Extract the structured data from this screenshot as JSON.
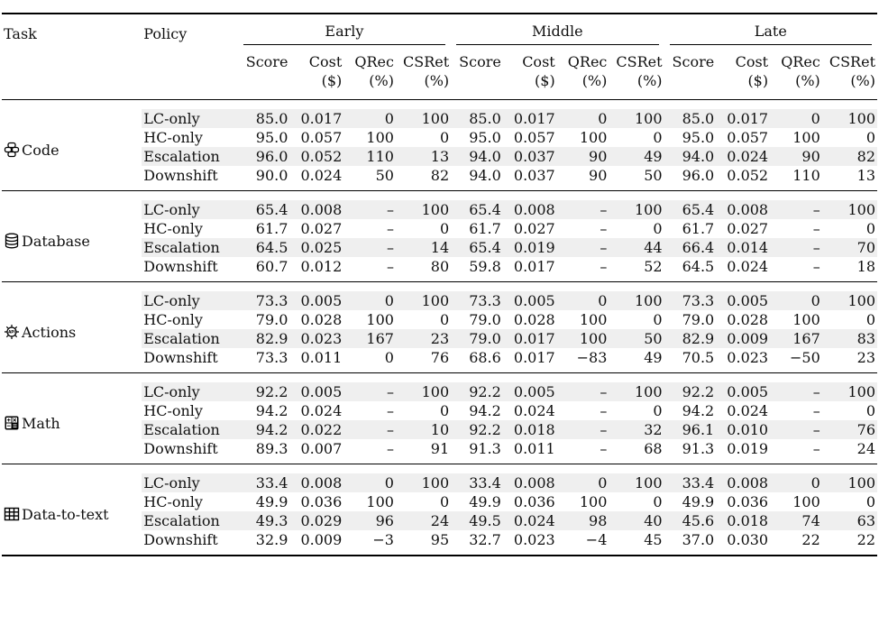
{
  "headers": {
    "task": "Task",
    "policy": "Policy",
    "groups": [
      "Early",
      "Middle",
      "Late"
    ],
    "sub": [
      {
        "l1": "Score",
        "l2": ""
      },
      {
        "l1": "Cost",
        "l2": "($)"
      },
      {
        "l1": "QRec",
        "l2": "(%)"
      },
      {
        "l1": "CSRet",
        "l2": "(%)"
      }
    ]
  },
  "tasks": [
    {
      "name": "Code",
      "icon": "code-icon",
      "rows": [
        {
          "policy": "LC-only",
          "cells": [
            "85.0",
            "0.017",
            "0",
            "100",
            "85.0",
            "0.017",
            "0",
            "100",
            "85.0",
            "0.017",
            "0",
            "100"
          ]
        },
        {
          "policy": "HC-only",
          "cells": [
            "95.0",
            "0.057",
            "100",
            "0",
            "95.0",
            "0.057",
            "100",
            "0",
            "95.0",
            "0.057",
            "100",
            "0"
          ]
        },
        {
          "policy": "Escalation",
          "cells": [
            "96.0",
            "0.052",
            "110",
            "13",
            "94.0",
            "0.037",
            "90",
            "49",
            "94.0",
            "0.024",
            "90",
            "82"
          ]
        },
        {
          "policy": "Downshift",
          "cells": [
            "90.0",
            "0.024",
            "50",
            "82",
            "94.0",
            "0.037",
            "90",
            "50",
            "96.0",
            "0.052",
            "110",
            "13"
          ]
        }
      ]
    },
    {
      "name": "Database",
      "icon": "database-icon",
      "rows": [
        {
          "policy": "LC-only",
          "cells": [
            "65.4",
            "0.008",
            "–",
            "100",
            "65.4",
            "0.008",
            "–",
            "100",
            "65.4",
            "0.008",
            "–",
            "100"
          ]
        },
        {
          "policy": "HC-only",
          "cells": [
            "61.7",
            "0.027",
            "–",
            "0",
            "61.7",
            "0.027",
            "–",
            "0",
            "61.7",
            "0.027",
            "–",
            "0"
          ]
        },
        {
          "policy": "Escalation",
          "cells": [
            "64.5",
            "0.025",
            "–",
            "14",
            "65.4",
            "0.019",
            "–",
            "44",
            "66.4",
            "0.014",
            "–",
            "70"
          ]
        },
        {
          "policy": "Downshift",
          "cells": [
            "60.7",
            "0.012",
            "–",
            "80",
            "59.8",
            "0.017",
            "–",
            "52",
            "64.5",
            "0.024",
            "–",
            "18"
          ]
        }
      ]
    },
    {
      "name": "Actions",
      "icon": "api-gear-icon",
      "rows": [
        {
          "policy": "LC-only",
          "cells": [
            "73.3",
            "0.005",
            "0",
            "100",
            "73.3",
            "0.005",
            "0",
            "100",
            "73.3",
            "0.005",
            "0",
            "100"
          ]
        },
        {
          "policy": "HC-only",
          "cells": [
            "79.0",
            "0.028",
            "100",
            "0",
            "79.0",
            "0.028",
            "100",
            "0",
            "79.0",
            "0.028",
            "100",
            "0"
          ]
        },
        {
          "policy": "Escalation",
          "cells": [
            "82.9",
            "0.023",
            "167",
            "23",
            "79.0",
            "0.017",
            "100",
            "50",
            "82.9",
            "0.009",
            "167",
            "83"
          ]
        },
        {
          "policy": "Downshift",
          "cells": [
            "73.3",
            "0.011",
            "0",
            "76",
            "68.6",
            "0.017",
            "−83",
            "49",
            "70.5",
            "0.023",
            "−50",
            "23"
          ]
        }
      ]
    },
    {
      "name": "Math",
      "icon": "calculator-icon",
      "rows": [
        {
          "policy": "LC-only",
          "cells": [
            "92.2",
            "0.005",
            "–",
            "100",
            "92.2",
            "0.005",
            "–",
            "100",
            "92.2",
            "0.005",
            "–",
            "100"
          ]
        },
        {
          "policy": "HC-only",
          "cells": [
            "94.2",
            "0.024",
            "–",
            "0",
            "94.2",
            "0.024",
            "–",
            "0",
            "94.2",
            "0.024",
            "–",
            "0"
          ]
        },
        {
          "policy": "Escalation",
          "cells": [
            "94.2",
            "0.022",
            "–",
            "10",
            "92.2",
            "0.018",
            "–",
            "32",
            "96.1",
            "0.010",
            "–",
            "76"
          ]
        },
        {
          "policy": "Downshift",
          "cells": [
            "89.3",
            "0.007",
            "–",
            "91",
            "91.3",
            "0.011",
            "–",
            "68",
            "91.3",
            "0.019",
            "–",
            "24"
          ]
        }
      ]
    },
    {
      "name": "Data-to-text",
      "icon": "table-icon",
      "rows": [
        {
          "policy": "LC-only",
          "cells": [
            "33.4",
            "0.008",
            "0",
            "100",
            "33.4",
            "0.008",
            "0",
            "100",
            "33.4",
            "0.008",
            "0",
            "100"
          ]
        },
        {
          "policy": "HC-only",
          "cells": [
            "49.9",
            "0.036",
            "100",
            "0",
            "49.9",
            "0.036",
            "100",
            "0",
            "49.9",
            "0.036",
            "100",
            "0"
          ]
        },
        {
          "policy": "Escalation",
          "cells": [
            "49.3",
            "0.029",
            "96",
            "24",
            "49.5",
            "0.024",
            "98",
            "40",
            "45.6",
            "0.018",
            "74",
            "63"
          ]
        },
        {
          "policy": "Downshift",
          "cells": [
            "32.9",
            "0.009",
            "−3",
            "95",
            "32.7",
            "0.023",
            "−4",
            "45",
            "37.0",
            "0.030",
            "22",
            "22"
          ]
        }
      ]
    }
  ]
}
